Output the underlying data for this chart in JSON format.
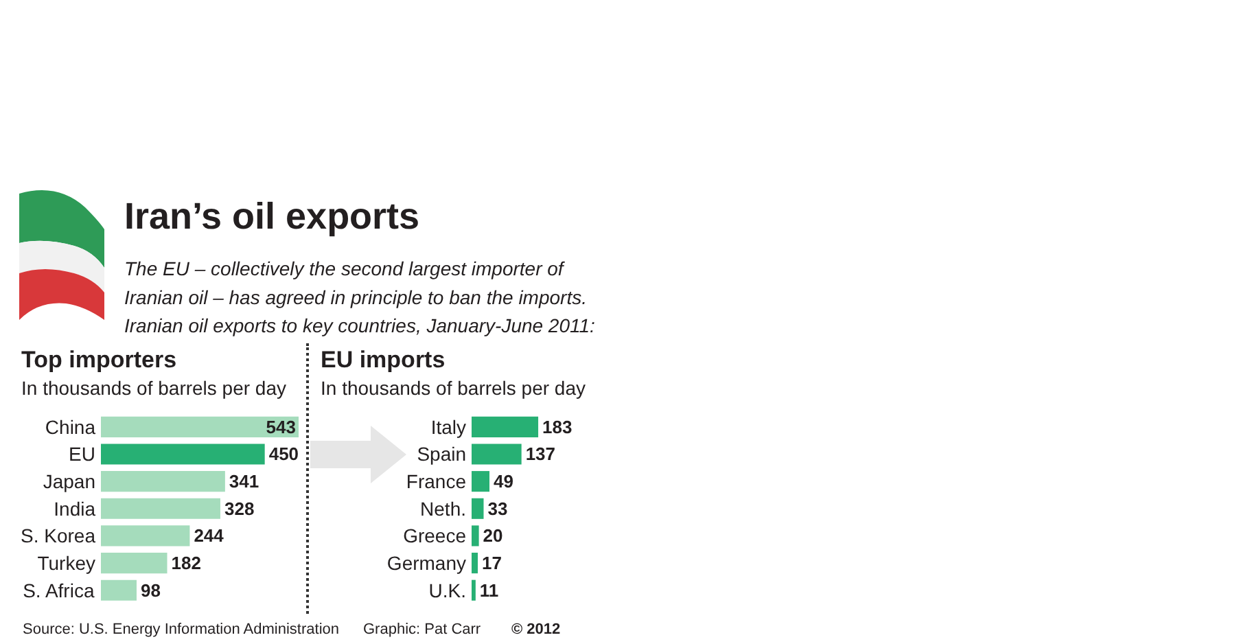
{
  "chart_data": [
    {
      "type": "bar",
      "orientation": "horizontal",
      "title": "Top importers",
      "subtitle": "In thousands of barrels per day",
      "categories": [
        "China",
        "EU",
        "Japan",
        "India",
        "S. Korea",
        "Turkey",
        "S. Africa"
      ],
      "values": [
        543,
        450,
        341,
        328,
        244,
        182,
        98
      ],
      "colors": [
        "#a5dcbc",
        "#27b074",
        "#a5dcbc",
        "#a5dcbc",
        "#a5dcbc",
        "#a5dcbc",
        "#a5dcbc"
      ],
      "data_labels": true,
      "tick_labels": "y",
      "annotations": [
        "Iran’s oil exports",
        "The EU – collectively the second largest importer of\nIranian oil – has agreed in principle to ban the imports.\nIranian oil exports to key countries, January-June 2011:",
        "Source: U.S. Energy Information Administration",
        "Graphic: Pat Carr",
        "© 2012"
      ]
    },
    {
      "type": "bar",
      "orientation": "horizontal",
      "title": "EU imports",
      "subtitle": "In thousands of barrels per day",
      "categories": [
        "Italy",
        "Spain",
        "France",
        "Neth.",
        "Greece",
        "Germany",
        "U.K."
      ],
      "values": [
        183,
        137,
        49,
        33,
        20,
        17,
        11
      ],
      "color": "#27b074",
      "data_labels": true,
      "tick_labels": "y"
    }
  ]
}
